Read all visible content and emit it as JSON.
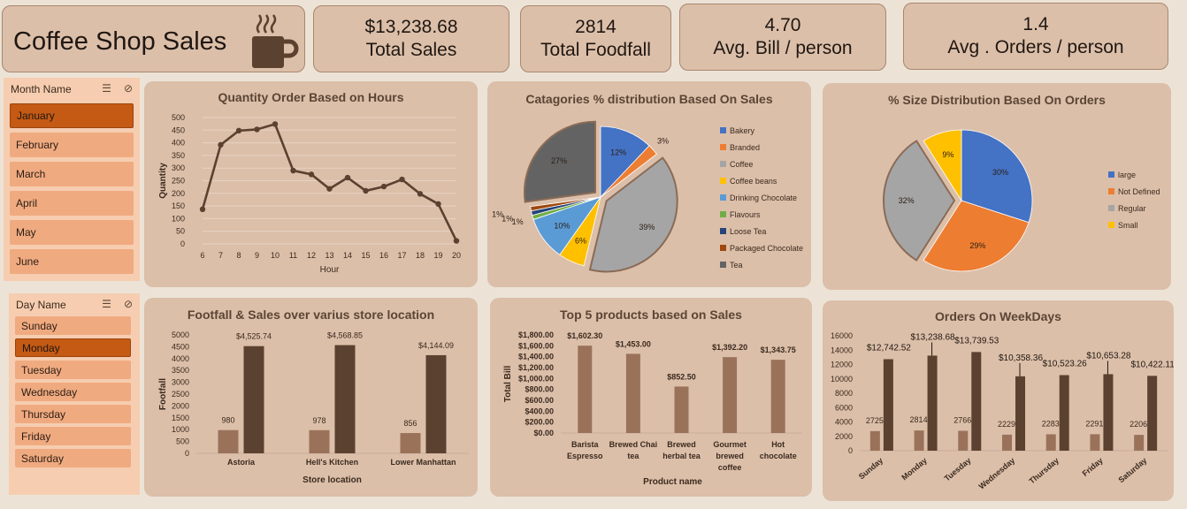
{
  "header": {
    "title": "Coffee Shop Sales",
    "kpis": [
      {
        "value": "$13,238.68",
        "label": "Total Sales"
      },
      {
        "value": "2814",
        "label": "Total Foodfall"
      },
      {
        "value": "4.70",
        "label": "Avg. Bill / person"
      },
      {
        "value": "1.4",
        "label": "Avg . Orders / person"
      }
    ]
  },
  "month_slicer": {
    "title": "Month Name",
    "items": [
      "January",
      "February",
      "March",
      "April",
      "May",
      "June"
    ],
    "selected": "January"
  },
  "day_slicer": {
    "title": "Day Name",
    "items": [
      "Sunday",
      "Monday",
      "Tuesday",
      "Wednesday",
      "Thursday",
      "Friday",
      "Saturday"
    ],
    "selected": "Monday"
  },
  "colors": {
    "accent": "#c45a14",
    "dark_brown": "#5b4130",
    "light_brown": "#9a725a"
  },
  "chart_data": [
    {
      "id": "hours",
      "type": "line",
      "title": "Quantity Order Based on Hours",
      "xlabel": "Hour",
      "ylabel": "Quantity",
      "x": [
        6,
        7,
        8,
        9,
        10,
        11,
        12,
        13,
        14,
        15,
        16,
        17,
        18,
        19,
        20
      ],
      "values": [
        137,
        392,
        448,
        453,
        474,
        290,
        275,
        218,
        262,
        210,
        227,
        255,
        198,
        158,
        12
      ],
      "ylim": [
        0,
        500
      ],
      "yticks": [
        0,
        50,
        100,
        150,
        200,
        250,
        300,
        350,
        400,
        450,
        500
      ]
    },
    {
      "id": "categories",
      "type": "pie",
      "title": "Catagories % distribution Based On Sales",
      "slices": [
        {
          "name": "Bakery",
          "value": 12,
          "label": "12%",
          "color": "#4472c4"
        },
        {
          "name": "Branded",
          "value": 2.5,
          "label": "3%",
          "color": "#ed7d31"
        },
        {
          "name": "Coffee",
          "value": 39,
          "label": "39%",
          "color": "#a5a5a5"
        },
        {
          "name": "Coffee beans",
          "value": 6,
          "label": "6%",
          "color": "#ffc000"
        },
        {
          "name": "Drinking Chocolate",
          "value": 10,
          "label": "10%",
          "color": "#5b9bd5"
        },
        {
          "name": "Flavours",
          "value": 1,
          "label": "1%",
          "color": "#70ad47"
        },
        {
          "name": "Loose Tea",
          "value": 1,
          "label": "1%",
          "color": "#264478"
        },
        {
          "name": "Packaged Chocolate",
          "value": 1,
          "label": "1%",
          "color": "#9e480e"
        },
        {
          "name": "Tea",
          "value": 27,
          "label": "27%",
          "color": "#636363"
        }
      ]
    },
    {
      "id": "sizes",
      "type": "pie",
      "title": "% Size Distribution Based On Orders",
      "slices": [
        {
          "name": "large",
          "value": 30,
          "label": "30%",
          "color": "#4472c4"
        },
        {
          "name": "Not Defined",
          "value": 29,
          "label": "29%",
          "color": "#ed7d31"
        },
        {
          "name": "Regular",
          "value": 32,
          "label": "32%",
          "color": "#a5a5a5"
        },
        {
          "name": "Small",
          "value": 9,
          "label": "9%",
          "color": "#ffc000"
        }
      ]
    },
    {
      "id": "locations",
      "type": "bar",
      "title": "Footfall & Sales over varius store location",
      "xlabel": "Store location",
      "ylabel": "Footfall",
      "categories": [
        "Astoria",
        "Hell's Kitchen",
        "Lower Manhattan"
      ],
      "series": [
        {
          "values": [
            980,
            978,
            856
          ],
          "labels": [
            "980",
            "978",
            "856"
          ]
        },
        {
          "values": [
            4525.74,
            4568.85,
            4144.09
          ],
          "labels": [
            "$4,525.74",
            "$4,568.85",
            "$4,144.09"
          ]
        }
      ],
      "ylim": [
        0,
        5000
      ],
      "yticks": [
        0,
        500,
        1000,
        1500,
        2000,
        2500,
        3000,
        3500,
        4000,
        4500,
        5000
      ]
    },
    {
      "id": "products",
      "type": "bar",
      "title": "Top 5 products based on Sales",
      "xlabel": "Product name",
      "ylabel": "Total Bill",
      "categories": [
        [
          "Barista",
          "Espresso"
        ],
        [
          "Brewed Chai",
          "tea"
        ],
        [
          "Brewed",
          "herbal tea"
        ],
        [
          "Gourmet",
          "brewed",
          "coffee"
        ],
        [
          "Hot",
          "chocolate"
        ]
      ],
      "values": [
        1602.3,
        1453.0,
        852.5,
        1392.2,
        1343.75
      ],
      "labels": [
        "$1,602.30",
        "$1,453.00",
        "$852.50",
        "$1,392.20",
        "$1,343.75"
      ],
      "ylim": [
        0,
        1800
      ],
      "yticks": [
        "$0.00",
        "$200.00",
        "$400.00",
        "$600.00",
        "$800.00",
        "$1,000.00",
        "$1,200.00",
        "$1,400.00",
        "$1,600.00",
        "$1,800.00"
      ]
    },
    {
      "id": "weekdays",
      "type": "bar",
      "title": "Orders On WeekDays",
      "categories": [
        "Sunday",
        "Monday",
        "Tuesday",
        "Wednesday",
        "Thursday",
        "Friday",
        "Saturday"
      ],
      "series": [
        {
          "values": [
            2725,
            2814,
            2766,
            2229,
            2283,
            2291,
            2206
          ],
          "labels": [
            "2725",
            "2814",
            "2766",
            "2229",
            "2283",
            "2291",
            "2206"
          ]
        },
        {
          "values": [
            12742.52,
            13238.68,
            13739.53,
            10358.36,
            10523.26,
            10653.28,
            10422.11
          ],
          "labels": [
            "$12,742.52",
            "$13,238.68",
            "$13,739.53",
            "$10,358.36",
            "$10,523.26",
            "$10,653.28",
            "$10,422.11"
          ]
        }
      ],
      "ylim": [
        0,
        16000
      ],
      "yticks": [
        0,
        2000,
        4000,
        6000,
        8000,
        10000,
        12000,
        14000,
        16000
      ]
    }
  ]
}
